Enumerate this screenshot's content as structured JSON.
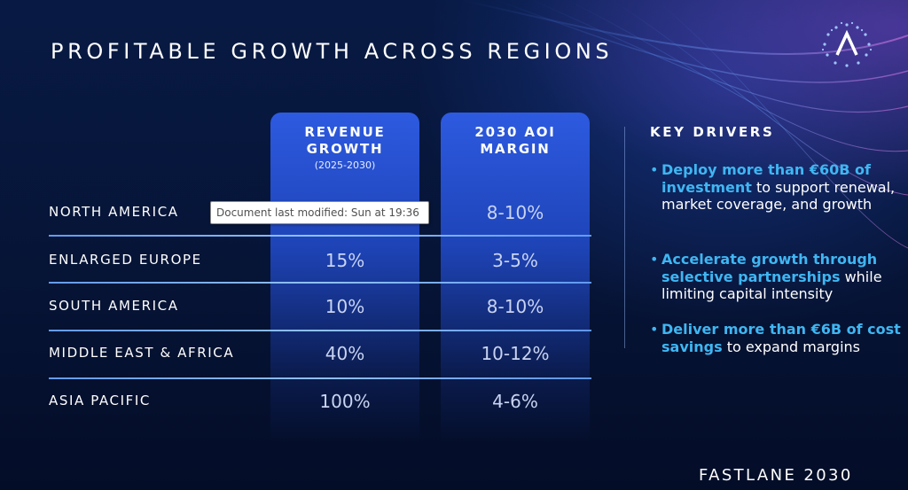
{
  "slide": {
    "title": "PROFITABLE GROWTH ACROSS REGIONS",
    "footer": "FASTLANE 2030"
  },
  "table": {
    "columns": [
      {
        "line1": "REVENUE",
        "line2": "GROWTH",
        "sub": "(2025-2030)"
      },
      {
        "line1": "2030 AOI",
        "line2": "MARGIN"
      }
    ],
    "rows": [
      {
        "region": "NORTH AMERICA",
        "revenue": "",
        "margin": "8-10%"
      },
      {
        "region": "ENLARGED EUROPE",
        "revenue": "15%",
        "margin": "3-5%"
      },
      {
        "region": "SOUTH AMERICA",
        "revenue": "10%",
        "margin": "8-10%"
      },
      {
        "region": "MIDDLE EAST & AFRICA",
        "revenue": "40%",
        "margin": "10-12%"
      },
      {
        "region": "ASIA PACIFIC",
        "revenue": "100%",
        "margin": "4-6%"
      }
    ]
  },
  "drivers": {
    "title": "KEY DRIVERS",
    "items": [
      {
        "highlight": "Deploy more than €60B of investment",
        "rest": " to support renewal, market coverage, and growth"
      },
      {
        "highlight": "Accelerate growth through selective partnerships",
        "rest": " while limiting capital intensity"
      },
      {
        "highlight": "Deliver more than €6B of cost savings",
        "rest": " to expand margins"
      }
    ]
  },
  "tooltip": {
    "text": "Document last modified: Sun at 19:36"
  },
  "colors": {
    "accent": "#3fb6f2",
    "column": "#2d5ae0",
    "background": "#061436"
  },
  "icons": {
    "logo": "chevron-a-star-ring-logo"
  }
}
